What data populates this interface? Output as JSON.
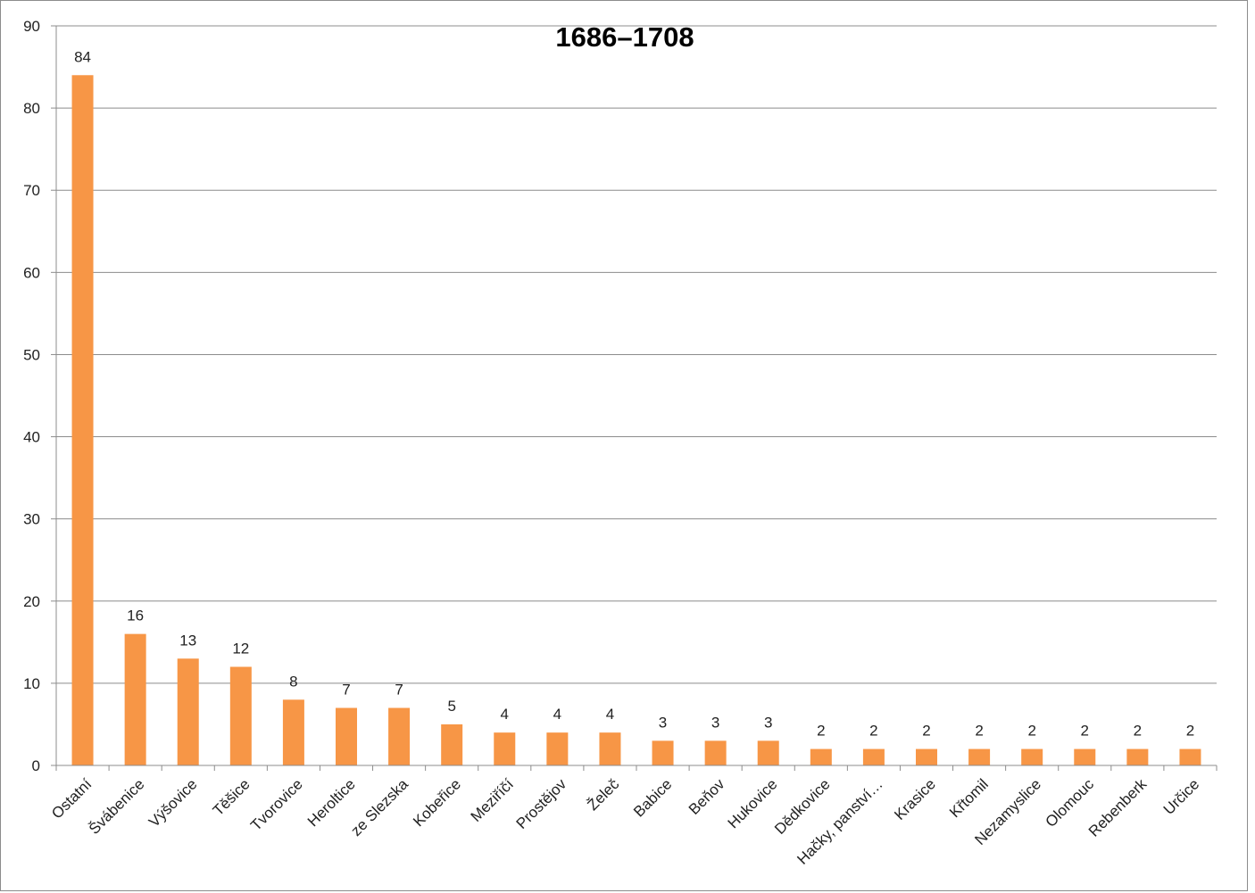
{
  "chart_data": {
    "type": "bar",
    "title": "1686–1708",
    "xlabel": "",
    "ylabel": "",
    "ylim": [
      0,
      90
    ],
    "yticks": [
      0,
      10,
      20,
      30,
      40,
      50,
      60,
      70,
      80,
      90
    ],
    "grid": true,
    "legend": "none",
    "bar_color": "#f79646",
    "categories": [
      "Ostatní",
      "Švábenice",
      "Výšovice",
      "Těšice",
      "Tvorovice",
      "Heroltice",
      "ze Slezska",
      "Kobeřice",
      "Meziříčí",
      "Prostějov",
      "Želeč",
      "Babice",
      "Beňov",
      "Hukovice",
      "Dědkovice",
      "Hačky, panství…",
      "Krasice",
      "Křtomil",
      "Nezamyslice",
      "Olomouc",
      "Rebenberk",
      "Určice"
    ],
    "values": [
      84,
      16,
      13,
      12,
      8,
      7,
      7,
      5,
      4,
      4,
      4,
      3,
      3,
      3,
      2,
      2,
      2,
      2,
      2,
      2,
      2,
      2
    ]
  }
}
